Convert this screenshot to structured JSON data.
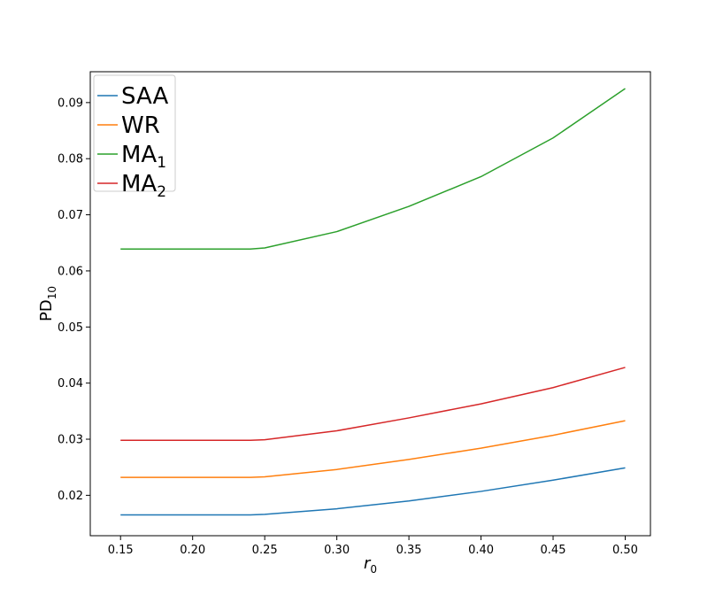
{
  "chart_data": {
    "type": "line",
    "title": "",
    "xlabel": {
      "base": "r",
      "sub": "0"
    },
    "ylabel": {
      "base": "PD",
      "sub": "10"
    },
    "xlim": [
      0.129,
      0.5175
    ],
    "ylim": [
      0.0128,
      0.0955
    ],
    "x_ticks": [
      0.15,
      0.2,
      0.25,
      0.3,
      0.35,
      0.4,
      0.45,
      0.5
    ],
    "x_tick_labels": [
      "0.15",
      "0.20",
      "0.25",
      "0.30",
      "0.35",
      "0.40",
      "0.45",
      "0.50"
    ],
    "y_ticks": [
      0.02,
      0.03,
      0.04,
      0.05,
      0.06,
      0.07,
      0.08,
      0.09
    ],
    "y_tick_labels": [
      "0.02",
      "0.03",
      "0.04",
      "0.05",
      "0.06",
      "0.07",
      "0.08",
      "0.09"
    ],
    "grid": false,
    "legend_position": "top-left",
    "x": [
      0.15,
      0.2,
      0.24,
      0.25,
      0.3,
      0.35,
      0.4,
      0.45,
      0.5
    ],
    "series": [
      {
        "name": "SAA",
        "label_base": "SAA",
        "label_sub": "",
        "color": "#1f77b4",
        "values": [
          0.0165,
          0.0165,
          0.0165,
          0.0166,
          0.0176,
          0.019,
          0.0207,
          0.0227,
          0.0249
        ]
      },
      {
        "name": "WR",
        "label_base": "WR",
        "label_sub": "",
        "color": "#ff7f0e",
        "values": [
          0.0232,
          0.0232,
          0.0232,
          0.0233,
          0.0246,
          0.0264,
          0.0284,
          0.0307,
          0.0333
        ]
      },
      {
        "name": "MA1",
        "label_base": "MA",
        "label_sub": "1",
        "color": "#2ca02c",
        "values": [
          0.0639,
          0.0639,
          0.0639,
          0.0641,
          0.067,
          0.0715,
          0.0768,
          0.0837,
          0.0925
        ]
      },
      {
        "name": "MA2",
        "label_base": "MA",
        "label_sub": "2",
        "color": "#d62728",
        "values": [
          0.0298,
          0.0298,
          0.0298,
          0.0299,
          0.0315,
          0.0338,
          0.0363,
          0.0392,
          0.0428
        ]
      }
    ]
  }
}
